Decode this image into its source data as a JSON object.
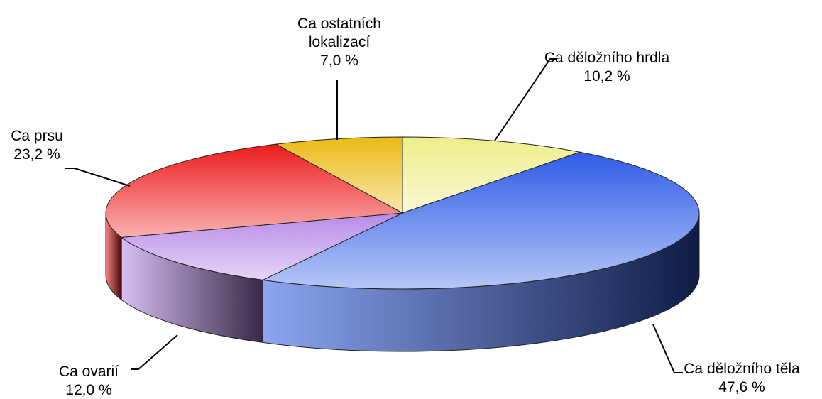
{
  "chart_data": {
    "type": "pie",
    "categories": [
      "Ca děložního hrdla",
      "Ca děložního těla",
      "Ca ovarií",
      "Ca prsu",
      "Ca ostatních lokalizací"
    ],
    "values": [
      10.2,
      47.6,
      12.0,
      23.2,
      7.0
    ],
    "value_labels": [
      "10,2 %",
      "47,6 %",
      "12,0 %",
      "23,2 %",
      "7,0 %"
    ],
    "colors": [
      "#eeee8a",
      "#2f5ce8",
      "#b88ae8",
      "#ee1c1c",
      "#ebb914"
    ]
  }
}
